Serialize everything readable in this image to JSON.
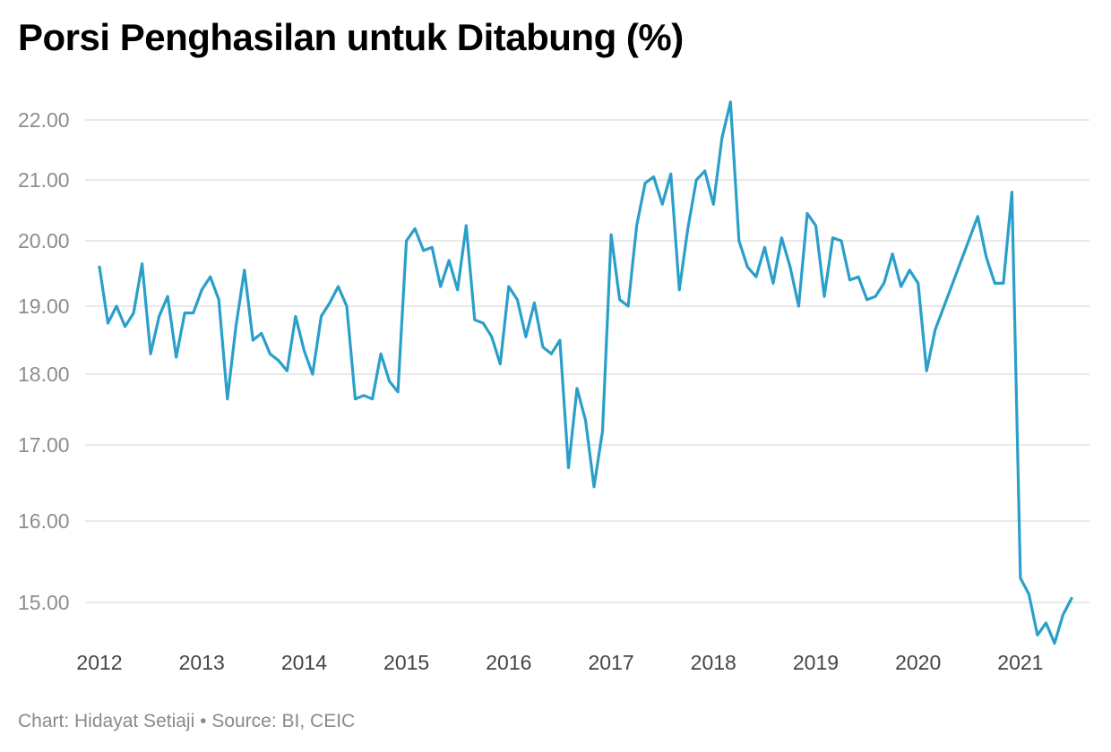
{
  "title": "Porsi Penghasilan untuk Ditabung (%)",
  "credit": {
    "chart_by": "Chart: Hidayat Setiaji",
    "separator": "•",
    "source": "Source: BI, CEIC"
  },
  "colors": {
    "line": "#2a9fc9",
    "grid": "#e2e2e2"
  },
  "chart_data": {
    "type": "line",
    "title": "Porsi Penghasilan untuk Ditabung (%)",
    "xlabel": "",
    "ylabel": "",
    "grid": true,
    "legend": "none",
    "x_ticks": [
      "2012",
      "2013",
      "2014",
      "2015",
      "2016",
      "2017",
      "2018",
      "2019",
      "2020",
      "2021"
    ],
    "y_ticks": [
      "15.00",
      "16.00",
      "17.00",
      "18.00",
      "19.00",
      "20.00",
      "21.00",
      "22.00"
    ],
    "y_tick_values": [
      15,
      16,
      17,
      18,
      19,
      20,
      21,
      22
    ],
    "xlim": [
      "2012-01",
      "2021-07"
    ],
    "ylim": [
      14.5,
      22.3
    ],
    "series": [
      {
        "points": [
          [
            "2012-01",
            19.6
          ],
          [
            "2012-02",
            18.75
          ],
          [
            "2012-03",
            19.0
          ],
          [
            "2012-04",
            18.7
          ],
          [
            "2012-05",
            18.9
          ],
          [
            "2012-06",
            19.65
          ],
          [
            "2012-07",
            18.3
          ],
          [
            "2012-08",
            18.85
          ],
          [
            "2012-09",
            19.15
          ],
          [
            "2012-10",
            18.25
          ],
          [
            "2012-11",
            18.9
          ],
          [
            "2012-12",
            18.9
          ],
          [
            "2013-01",
            19.25
          ],
          [
            "2013-02",
            19.45
          ],
          [
            "2013-03",
            19.1
          ],
          [
            "2013-04",
            17.65
          ],
          [
            "2013-05",
            18.7
          ],
          [
            "2013-06",
            19.55
          ],
          [
            "2013-07",
            18.5
          ],
          [
            "2013-08",
            18.6
          ],
          [
            "2013-09",
            18.3
          ],
          [
            "2013-10",
            18.2
          ],
          [
            "2013-11",
            18.05
          ],
          [
            "2013-12",
            18.85
          ],
          [
            "2014-01",
            18.35
          ],
          [
            "2014-02",
            18.0
          ],
          [
            "2014-03",
            18.85
          ],
          [
            "2014-04",
            19.05
          ],
          [
            "2014-05",
            19.3
          ],
          [
            "2014-06",
            19.0
          ],
          [
            "2014-07",
            17.65
          ],
          [
            "2014-08",
            17.7
          ],
          [
            "2014-09",
            17.65
          ],
          [
            "2014-10",
            18.3
          ],
          [
            "2014-11",
            17.9
          ],
          [
            "2014-12",
            17.75
          ],
          [
            "2015-01",
            20.0
          ],
          [
            "2015-02",
            20.2
          ],
          [
            "2015-03",
            19.85
          ],
          [
            "2015-04",
            19.9
          ],
          [
            "2015-05",
            19.3
          ],
          [
            "2015-06",
            19.7
          ],
          [
            "2015-07",
            19.25
          ],
          [
            "2015-08",
            20.25
          ],
          [
            "2015-09",
            18.8
          ],
          [
            "2015-10",
            18.75
          ],
          [
            "2015-11",
            18.55
          ],
          [
            "2015-12",
            18.15
          ],
          [
            "2016-01",
            19.3
          ],
          [
            "2016-02",
            19.1
          ],
          [
            "2016-03",
            18.55
          ],
          [
            "2016-04",
            19.05
          ],
          [
            "2016-05",
            18.4
          ],
          [
            "2016-06",
            18.3
          ],
          [
            "2016-07",
            18.5
          ],
          [
            "2016-08",
            16.7
          ],
          [
            "2016-09",
            17.8
          ],
          [
            "2016-10",
            17.35
          ],
          [
            "2016-11",
            16.45
          ],
          [
            "2016-12",
            17.2
          ],
          [
            "2017-01",
            20.1
          ],
          [
            "2017-02",
            19.1
          ],
          [
            "2017-03",
            19.0
          ],
          [
            "2017-04",
            20.25
          ],
          [
            "2017-05",
            20.95
          ],
          [
            "2017-06",
            21.05
          ],
          [
            "2017-07",
            20.6
          ],
          [
            "2017-08",
            21.1
          ],
          [
            "2017-09",
            19.25
          ],
          [
            "2017-10",
            20.2
          ],
          [
            "2017-11",
            21.0
          ],
          [
            "2017-12",
            21.15
          ],
          [
            "2018-01",
            20.6
          ],
          [
            "2018-02",
            21.7
          ],
          [
            "2018-03",
            22.3
          ],
          [
            "2018-04",
            20.0
          ],
          [
            "2018-05",
            19.6
          ],
          [
            "2018-06",
            19.45
          ],
          [
            "2018-07",
            19.9
          ],
          [
            "2018-08",
            19.35
          ],
          [
            "2018-09",
            20.05
          ],
          [
            "2018-10",
            19.6
          ],
          [
            "2018-11",
            19.0
          ],
          [
            "2018-12",
            20.45
          ],
          [
            "2019-01",
            20.25
          ],
          [
            "2019-02",
            19.15
          ],
          [
            "2019-03",
            20.05
          ],
          [
            "2019-04",
            20.0
          ],
          [
            "2019-05",
            19.4
          ],
          [
            "2019-06",
            19.45
          ],
          [
            "2019-07",
            19.1
          ],
          [
            "2019-08",
            19.15
          ],
          [
            "2019-09",
            19.35
          ],
          [
            "2019-10",
            19.8
          ],
          [
            "2019-11",
            19.3
          ],
          [
            "2019-12",
            19.55
          ],
          [
            "2020-01",
            19.35
          ],
          [
            "2020-02",
            18.05
          ],
          [
            "2020-03",
            18.65
          ],
          [
            "2020-08",
            20.4
          ],
          [
            "2020-09",
            19.75
          ],
          [
            "2020-10",
            19.35
          ],
          [
            "2020-11",
            19.35
          ],
          [
            "2020-12",
            20.8
          ],
          [
            "2021-01",
            15.3
          ],
          [
            "2021-02",
            15.1
          ],
          [
            "2021-03",
            14.6
          ],
          [
            "2021-04",
            14.75
          ],
          [
            "2021-05",
            14.5
          ],
          [
            "2021-06",
            14.85
          ],
          [
            "2021-07",
            15.05
          ]
        ]
      }
    ]
  }
}
